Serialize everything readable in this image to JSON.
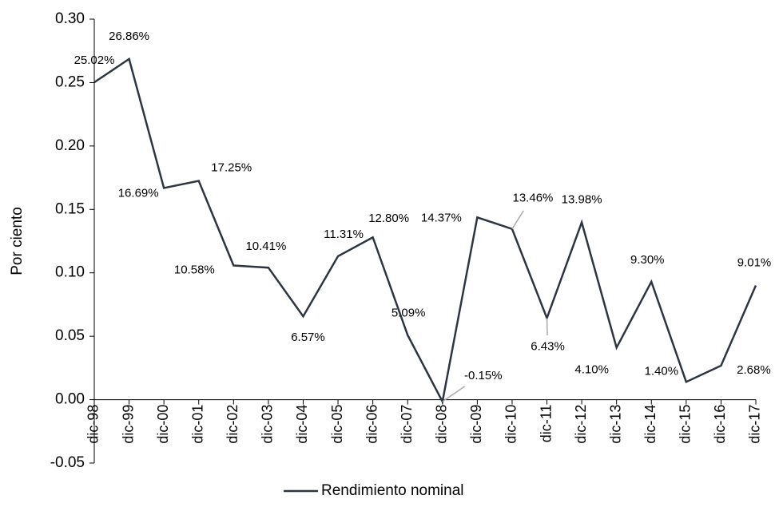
{
  "chart_data": {
    "type": "line",
    "y_axis_label": "Por ciento",
    "categories": [
      "dic-98",
      "dic-99",
      "dic-00",
      "dic-01",
      "dic-02",
      "dic-03",
      "dic-04",
      "dic-05",
      "dic-06",
      "dic-07",
      "dic-08",
      "dic-09",
      "dic-10",
      "dic-11",
      "dic-12",
      "dic-13",
      "dic-14",
      "dic-15",
      "dic-16",
      "dic-17"
    ],
    "series": [
      {
        "name": "Rendimiento nominal",
        "color": "#2e3542",
        "values": [
          0.2502,
          0.2686,
          0.1669,
          0.1725,
          0.1058,
          0.1041,
          0.0657,
          0.1131,
          0.128,
          0.0509,
          -0.0015,
          0.1437,
          0.1346,
          0.0643,
          0.1398,
          0.041,
          0.093,
          0.014,
          0.0268,
          0.0901
        ],
        "value_labels": [
          "25.02%",
          "26.86%",
          "16.69%",
          "17.25%",
          "10.58%",
          "10.41%",
          "6.57%",
          "11.31%",
          "12.80%",
          "5.09%",
          "-0.15%",
          "14.37%",
          "13.46%",
          "6.43%",
          "13.98%",
          "4.10%",
          "9.30%",
          "1.40%",
          "2.68%",
          "9.01%"
        ]
      }
    ],
    "ylim": [
      -0.05,
      0.3
    ],
    "yticks": [
      {
        "value": 0.3,
        "label": "0.30"
      },
      0.25,
      {
        "value": 0.2,
        "label": "0.20"
      },
      0.15,
      {
        "value": 0.1,
        "label": "0.10"
      },
      0.05,
      {
        "value": 0,
        "label": "0.00"
      },
      -0.05
    ]
  }
}
